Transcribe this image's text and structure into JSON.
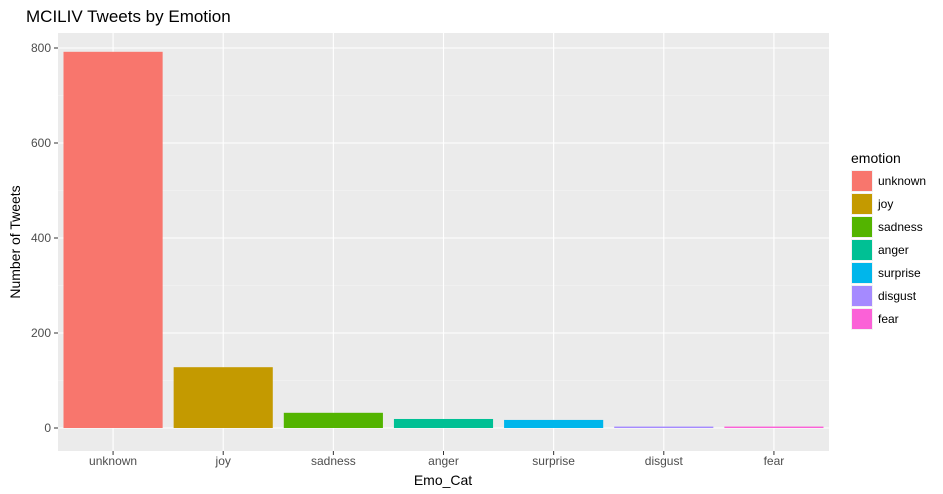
{
  "chart_data": {
    "type": "bar",
    "title": "MCILIV Tweets by Emotion",
    "xlabel": "Emo_Cat",
    "ylabel": "Number of Tweets",
    "categories": [
      "unknown",
      "joy",
      "sadness",
      "anger",
      "surprise",
      "disgust",
      "fear"
    ],
    "values": [
      792,
      128,
      32,
      19,
      17,
      3,
      3
    ],
    "ylim": [
      0,
      835
    ],
    "yticks": [
      0,
      200,
      400,
      600,
      800
    ],
    "grid": true,
    "legend": {
      "title": "emotion",
      "position": "right",
      "entries": [
        "unknown",
        "joy",
        "sadness",
        "anger",
        "surprise",
        "disgust",
        "fear"
      ]
    },
    "colors": [
      "#F8766D",
      "#C49A00",
      "#53B400",
      "#00C094",
      "#00B6EB",
      "#A58AFF",
      "#FB61D7"
    ]
  }
}
